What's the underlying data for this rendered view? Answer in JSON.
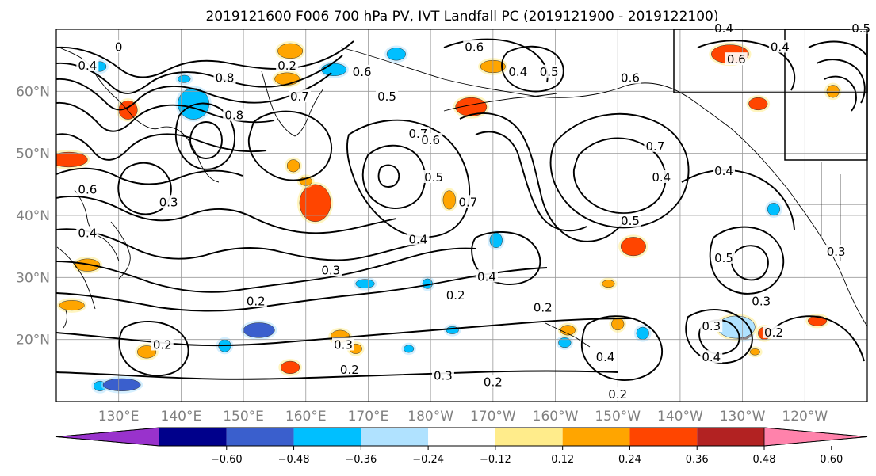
{
  "title": "2019121600 F006 700 hPa PV, IVT Landfall PC (2019121900 - 2019122100)",
  "map": {
    "lon_range": [
      120,
      250
    ],
    "lat_range": [
      10,
      70
    ],
    "lat_labels": [
      "20°N",
      "30°N",
      "40°N",
      "50°N",
      "60°N"
    ],
    "lat_values": [
      20,
      30,
      40,
      50,
      60
    ],
    "lon_labels": [
      "130°E",
      "140°E",
      "150°E",
      "160°E",
      "170°E",
      "180°W",
      "170°W",
      "160°W",
      "150°W",
      "140°W",
      "130°W",
      "120°W"
    ],
    "lon_values": [
      130,
      140,
      150,
      160,
      170,
      180,
      190,
      200,
      210,
      220,
      230,
      240
    ],
    "gridlines": true
  },
  "colorbar": {
    "ticks": [
      "−0.60",
      "−0.48",
      "−0.36",
      "−0.24",
      "−0.12",
      "0.12",
      "0.24",
      "0.36",
      "0.48",
      "0.60"
    ],
    "colors": [
      "#9932cc",
      "#00008b",
      "#3a5fcd",
      "#00bfff",
      "#b0e2ff",
      "#ffffff",
      "#ffec8b",
      "#ffa500",
      "#ff4500",
      "#b22222",
      "#ff82ab"
    ]
  },
  "contour_labels": [
    {
      "text": "0",
      "lon": 130,
      "lat": 67
    },
    {
      "text": "0.8",
      "lon": 147,
      "lat": 62
    },
    {
      "text": "0.8",
      "lon": 148.5,
      "lat": 56
    },
    {
      "text": "0.2",
      "lon": 157,
      "lat": 64
    },
    {
      "text": "0.6",
      "lon": 169,
      "lat": 63
    },
    {
      "text": "0.5",
      "lon": 173,
      "lat": 59
    },
    {
      "text": "0.7",
      "lon": 159,
      "lat": 59
    },
    {
      "text": "0.7",
      "lon": 178,
      "lat": 53
    },
    {
      "text": "0.6",
      "lon": 180,
      "lat": 52
    },
    {
      "text": "0.5",
      "lon": 180.5,
      "lat": 46
    },
    {
      "text": "0.7",
      "lon": 186,
      "lat": 42
    },
    {
      "text": "0.4",
      "lon": 194,
      "lat": 63
    },
    {
      "text": "0.5",
      "lon": 199,
      "lat": 63
    },
    {
      "text": "0.6",
      "lon": 187,
      "lat": 67
    },
    {
      "text": "0.6",
      "lon": 212,
      "lat": 62
    },
    {
      "text": "0.7",
      "lon": 216,
      "lat": 51
    },
    {
      "text": "0.4",
      "lon": 217,
      "lat": 46
    },
    {
      "text": "0.5",
      "lon": 212,
      "lat": 39
    },
    {
      "text": "0.4",
      "lon": 227,
      "lat": 47
    },
    {
      "text": "0.3",
      "lon": 138,
      "lat": 42
    },
    {
      "text": "0.4",
      "lon": 178,
      "lat": 36
    },
    {
      "text": "0.3",
      "lon": 164,
      "lat": 31
    },
    {
      "text": "0.2",
      "lon": 152,
      "lat": 26
    },
    {
      "text": "0.4",
      "lon": 189,
      "lat": 30
    },
    {
      "text": "0.2",
      "lon": 184,
      "lat": 27
    },
    {
      "text": "0.2",
      "lon": 198,
      "lat": 25
    },
    {
      "text": "0.3",
      "lon": 225,
      "lat": 22
    },
    {
      "text": "0.4",
      "lon": 225,
      "lat": 17
    },
    {
      "text": "0.4",
      "lon": 208,
      "lat": 17
    },
    {
      "text": "0.3",
      "lon": 166,
      "lat": 19
    },
    {
      "text": "0.2",
      "lon": 167,
      "lat": 15
    },
    {
      "text": "0.3",
      "lon": 182,
      "lat": 14
    },
    {
      "text": "0.2",
      "lon": 190,
      "lat": 13
    },
    {
      "text": "0.2",
      "lon": 210,
      "lat": 11
    },
    {
      "text": "0.2",
      "lon": 137,
      "lat": 19
    },
    {
      "text": "0.2",
      "lon": 235,
      "lat": 21
    },
    {
      "text": "0.3",
      "lon": 233,
      "lat": 26
    },
    {
      "text": "0.5",
      "lon": 227,
      "lat": 33
    },
    {
      "text": "0.3",
      "lon": 245,
      "lat": 34
    },
    {
      "text": "0.6",
      "lon": 229,
      "lat": 65
    },
    {
      "text": "0.4",
      "lon": 227,
      "lat": 70
    },
    {
      "text": "0.4",
      "lon": 236,
      "lat": 67
    },
    {
      "text": "0.5",
      "lon": 249,
      "lat": 70
    },
    {
      "text": "0.6",
      "lon": 125,
      "lat": 44
    },
    {
      "text": "0.4",
      "lon": 125,
      "lat": 37
    },
    {
      "text": "0.4",
      "lon": 125,
      "lat": 64
    }
  ],
  "shaded_regions": [
    {
      "lon": 161.5,
      "lat": 42,
      "rx": 2.5,
      "ry": 3,
      "color": "#ff4500"
    },
    {
      "lon": 122,
      "lat": 49,
      "rx": 3,
      "ry": 1.2,
      "color": "#ff4500"
    },
    {
      "lon": 157.5,
      "lat": 66.5,
      "rx": 2,
      "ry": 1.2,
      "color": "#ffa500"
    },
    {
      "lon": 164.5,
      "lat": 63.5,
      "rx": 2,
      "ry": 1,
      "color": "#00bfff"
    },
    {
      "lon": 157,
      "lat": 62,
      "rx": 2,
      "ry": 1,
      "color": "#ffa500"
    },
    {
      "lon": 142,
      "lat": 58,
      "rx": 2.5,
      "ry": 2.5,
      "color": "#00bfff"
    },
    {
      "lon": 131.5,
      "lat": 57,
      "rx": 1.5,
      "ry": 1.5,
      "color": "#ff4500"
    },
    {
      "lon": 186.5,
      "lat": 57.5,
      "rx": 2.5,
      "ry": 1.5,
      "color": "#ff4500"
    },
    {
      "lon": 190,
      "lat": 64,
      "rx": 2,
      "ry": 1,
      "color": "#ffa500"
    },
    {
      "lon": 228,
      "lat": 66,
      "rx": 3,
      "ry": 1.5,
      "color": "#ff4500"
    },
    {
      "lon": 212.5,
      "lat": 35,
      "rx": 2,
      "ry": 1.5,
      "color": "#ff4500"
    },
    {
      "lon": 183,
      "lat": 42.5,
      "rx": 1,
      "ry": 1.5,
      "color": "#ffa500"
    },
    {
      "lon": 190.5,
      "lat": 36,
      "rx": 1,
      "ry": 1.2,
      "color": "#00bfff"
    },
    {
      "lon": 152.5,
      "lat": 21.5,
      "rx": 2.5,
      "ry": 1.2,
      "color": "#3a5fcd"
    },
    {
      "lon": 230,
      "lat": 21,
      "rx": 1.5,
      "ry": 1,
      "color": "#00008b"
    },
    {
      "lon": 233.5,
      "lat": 21,
      "rx": 1,
      "ry": 1,
      "color": "#ff4500"
    },
    {
      "lon": 229,
      "lat": 22,
      "rx": 3,
      "ry": 1.8,
      "color": "#b0e2ff"
    },
    {
      "lon": 242,
      "lat": 23,
      "rx": 1.5,
      "ry": 0.8,
      "color": "#ff4500"
    },
    {
      "lon": 210,
      "lat": 22.5,
      "rx": 1,
      "ry": 1,
      "color": "#ffa500"
    },
    {
      "lon": 214,
      "lat": 21,
      "rx": 1,
      "ry": 1,
      "color": "#00bfff"
    },
    {
      "lon": 140.5,
      "lat": 62,
      "rx": 1,
      "ry": 0.6,
      "color": "#00bfff"
    },
    {
      "lon": 127,
      "lat": 12.5,
      "rx": 1,
      "ry": 0.8,
      "color": "#00bfff"
    },
    {
      "lon": 130.5,
      "lat": 12.7,
      "rx": 3,
      "ry": 1,
      "color": "#3a5fcd"
    },
    {
      "lon": 125,
      "lat": 32,
      "rx": 2,
      "ry": 1,
      "color": "#ffa500"
    },
    {
      "lon": 122.5,
      "lat": 25.5,
      "rx": 2,
      "ry": 0.8,
      "color": "#ffa500"
    },
    {
      "lon": 134.5,
      "lat": 18,
      "rx": 1.5,
      "ry": 1,
      "color": "#ffa500"
    },
    {
      "lon": 157.5,
      "lat": 15.5,
      "rx": 1.5,
      "ry": 1,
      "color": "#ff4500"
    },
    {
      "lon": 165.5,
      "lat": 20.5,
      "rx": 1.5,
      "ry": 1,
      "color": "#ffa500"
    },
    {
      "lon": 168,
      "lat": 18.5,
      "rx": 1,
      "ry": 0.8,
      "color": "#ffa500"
    },
    {
      "lon": 169.5,
      "lat": 29,
      "rx": 1.5,
      "ry": 0.7,
      "color": "#00bfff"
    },
    {
      "lon": 176.5,
      "lat": 18.5,
      "rx": 0.8,
      "ry": 0.6,
      "color": "#00bfff"
    },
    {
      "lon": 179.5,
      "lat": 29,
      "rx": 0.8,
      "ry": 0.8,
      "color": "#00bfff"
    },
    {
      "lon": 183.5,
      "lat": 21.5,
      "rx": 1,
      "ry": 0.6,
      "color": "#00bfff"
    },
    {
      "lon": 201.5,
      "lat": 19.5,
      "rx": 1,
      "ry": 0.8,
      "color": "#00bfff"
    },
    {
      "lon": 202,
      "lat": 21.5,
      "rx": 1.2,
      "ry": 0.8,
      "color": "#ffa500"
    },
    {
      "lon": 158,
      "lat": 48,
      "rx": 1,
      "ry": 1,
      "color": "#ffa500"
    },
    {
      "lon": 160,
      "lat": 45.5,
      "rx": 1,
      "ry": 0.7,
      "color": "#ffa500"
    },
    {
      "lon": 174.5,
      "lat": 66,
      "rx": 1.5,
      "ry": 1,
      "color": "#00bfff"
    },
    {
      "lon": 208.5,
      "lat": 29,
      "rx": 1,
      "ry": 0.6,
      "color": "#ffa500"
    },
    {
      "lon": 244.5,
      "lat": 60,
      "rx": 1,
      "ry": 1,
      "color": "#ffa500"
    },
    {
      "lon": 235,
      "lat": 41,
      "rx": 1,
      "ry": 1,
      "color": "#00bfff"
    },
    {
      "lon": 232,
      "lat": 18,
      "rx": 0.8,
      "ry": 0.5,
      "color": "#ffa500"
    },
    {
      "lon": 232.5,
      "lat": 58,
      "rx": 1.5,
      "ry": 1,
      "color": "#ff4500"
    },
    {
      "lon": 127,
      "lat": 64,
      "rx": 1,
      "ry": 0.8,
      "color": "#00bfff"
    },
    {
      "lon": 147,
      "lat": 19,
      "rx": 1,
      "ry": 1,
      "color": "#00bfff"
    }
  ]
}
